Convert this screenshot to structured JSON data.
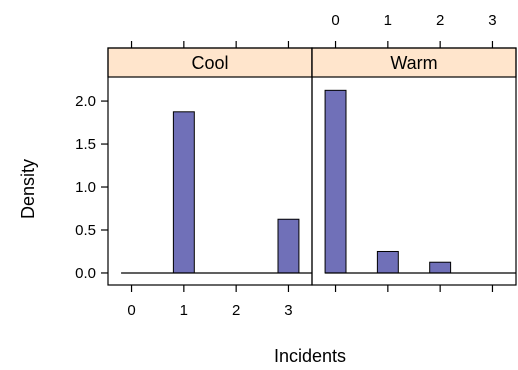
{
  "chart_data": {
    "type": "bar",
    "xlabel": "Incidents",
    "ylabel": "Density",
    "xlim": [
      -0.45,
      3.45
    ],
    "ylim": [
      -0.14,
      2.28
    ],
    "x_ticks": [
      0,
      1,
      2,
      3
    ],
    "x_tick_labels": [
      "0",
      "1",
      "2",
      "3"
    ],
    "y_ticks": [
      0.0,
      0.5,
      1.0,
      1.5,
      2.0
    ],
    "y_tick_labels": [
      "0.0",
      "0.5",
      "1.0",
      "1.5",
      "2.0"
    ],
    "bar_width": 0.4,
    "grid": false,
    "strip_color": "#ffe5cc",
    "bar_color": "#7070b8",
    "panels": [
      {
        "name": "Cool",
        "x": [
          1,
          3
        ],
        "values": [
          1.875,
          0.625
        ],
        "baseline": [
          -0.2,
          3.45
        ]
      },
      {
        "name": "Warm",
        "x": [
          0,
          1,
          2
        ],
        "values": [
          2.125,
          0.25,
          0.125
        ],
        "baseline": [
          -0.2,
          3.45
        ]
      }
    ]
  }
}
